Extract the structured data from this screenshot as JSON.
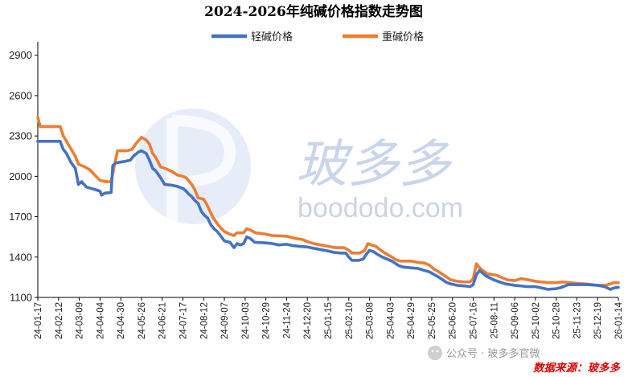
{
  "chart_data": {
    "type": "line",
    "title": "2024-2026年纯碱价格指数走势图",
    "xlabel": "",
    "ylabel": "",
    "ylim": [
      1100,
      3000
    ],
    "yticks": [
      1100,
      1400,
      1700,
      2000,
      2300,
      2600,
      2900
    ],
    "xlim": [
      "2024-01-17",
      "2026-01-14"
    ],
    "xticks": [
      "24-01-17",
      "24-02-12",
      "24-03-09",
      "24-04-04",
      "24-04-30",
      "24-05-26",
      "24-06-21",
      "24-07-17",
      "24-08-12",
      "24-09-07",
      "24-10-03",
      "24-10-29",
      "24-11-24",
      "24-12-20",
      "25-01-15",
      "25-02-10",
      "25-03-08",
      "25-04-03",
      "25-04-29",
      "25-05-25",
      "25-06-20",
      "25-07-16",
      "25-08-11",
      "25-09-06",
      "25-10-02",
      "25-10-28",
      "25-11-23",
      "25-12-19",
      "26-01-14"
    ],
    "grid": false,
    "legend": "top-center",
    "series": [
      {
        "name": "轻碱价格",
        "color": "#4472c4",
        "points": [
          [
            "2024-01-17",
            2260
          ],
          [
            "2024-01-18",
            2260
          ],
          [
            "2024-02-14",
            2260
          ],
          [
            "2024-02-18",
            2200
          ],
          [
            "2024-02-22",
            2170
          ],
          [
            "2024-02-28",
            2100
          ],
          [
            "2024-03-04",
            2060
          ],
          [
            "2024-03-08",
            1940
          ],
          [
            "2024-03-12",
            1960
          ],
          [
            "2024-03-18",
            1920
          ],
          [
            "2024-03-24",
            1910
          ],
          [
            "2024-03-30",
            1900
          ],
          [
            "2024-04-04",
            1890
          ],
          [
            "2024-04-06",
            1860
          ],
          [
            "2024-04-10",
            1875
          ],
          [
            "2024-04-18",
            1880
          ],
          [
            "2024-04-20",
            2080
          ],
          [
            "2024-04-24",
            2100
          ],
          [
            "2024-05-04",
            2110
          ],
          [
            "2024-05-12",
            2120
          ],
          [
            "2024-05-16",
            2150
          ],
          [
            "2024-05-22",
            2180
          ],
          [
            "2024-05-26",
            2190
          ],
          [
            "2024-06-01",
            2170
          ],
          [
            "2024-06-05",
            2120
          ],
          [
            "2024-06-09",
            2060
          ],
          [
            "2024-06-13",
            2040
          ],
          [
            "2024-06-19",
            1990
          ],
          [
            "2024-06-24",
            1940
          ],
          [
            "2024-07-02",
            1935
          ],
          [
            "2024-07-10",
            1925
          ],
          [
            "2024-07-17",
            1910
          ],
          [
            "2024-07-21",
            1890
          ],
          [
            "2024-07-24",
            1870
          ],
          [
            "2024-07-28",
            1850
          ],
          [
            "2024-08-01",
            1820
          ],
          [
            "2024-08-05",
            1800
          ],
          [
            "2024-08-09",
            1740
          ],
          [
            "2024-08-13",
            1710
          ],
          [
            "2024-08-17",
            1690
          ],
          [
            "2024-08-21",
            1640
          ],
          [
            "2024-08-25",
            1610
          ],
          [
            "2024-08-29",
            1590
          ],
          [
            "2024-09-02",
            1560
          ],
          [
            "2024-09-07",
            1520
          ],
          [
            "2024-09-14",
            1510
          ],
          [
            "2024-09-19",
            1470
          ],
          [
            "2024-09-23",
            1500
          ],
          [
            "2024-09-27",
            1490
          ],
          [
            "2024-10-01",
            1500
          ],
          [
            "2024-10-05",
            1550
          ],
          [
            "2024-10-09",
            1540
          ],
          [
            "2024-10-15",
            1510
          ],
          [
            "2024-10-29",
            1505
          ],
          [
            "2024-11-06",
            1500
          ],
          [
            "2024-11-14",
            1490
          ],
          [
            "2024-11-24",
            1495
          ],
          [
            "2024-12-02",
            1485
          ],
          [
            "2024-12-10",
            1480
          ],
          [
            "2024-12-20",
            1475
          ],
          [
            "2024-12-28",
            1465
          ],
          [
            "2025-01-06",
            1455
          ],
          [
            "2025-01-15",
            1445
          ],
          [
            "2025-01-22",
            1435
          ],
          [
            "2025-01-30",
            1430
          ],
          [
            "2025-02-06",
            1430
          ],
          [
            "2025-02-10",
            1400
          ],
          [
            "2025-02-14",
            1375
          ],
          [
            "2025-02-22",
            1375
          ],
          [
            "2025-02-28",
            1385
          ],
          [
            "2025-03-04",
            1420
          ],
          [
            "2025-03-08",
            1450
          ],
          [
            "2025-03-13",
            1440
          ],
          [
            "2025-03-18",
            1420
          ],
          [
            "2025-03-24",
            1400
          ],
          [
            "2025-03-30",
            1385
          ],
          [
            "2025-04-05",
            1370
          ],
          [
            "2025-04-10",
            1350
          ],
          [
            "2025-04-14",
            1335
          ],
          [
            "2025-04-20",
            1325
          ],
          [
            "2025-04-29",
            1320
          ],
          [
            "2025-05-08",
            1315
          ],
          [
            "2025-05-16",
            1300
          ],
          [
            "2025-05-22",
            1290
          ],
          [
            "2025-05-28",
            1270
          ],
          [
            "2025-06-03",
            1250
          ],
          [
            "2025-06-08",
            1230
          ],
          [
            "2025-06-13",
            1210
          ],
          [
            "2025-06-18",
            1200
          ],
          [
            "2025-06-26",
            1190
          ],
          [
            "2025-07-06",
            1185
          ],
          [
            "2025-07-12",
            1180
          ],
          [
            "2025-07-16",
            1195
          ],
          [
            "2025-07-20",
            1270
          ],
          [
            "2025-07-24",
            1300
          ],
          [
            "2025-07-28",
            1280
          ],
          [
            "2025-08-01",
            1260
          ],
          [
            "2025-08-06",
            1245
          ],
          [
            "2025-08-11",
            1230
          ],
          [
            "2025-08-18",
            1215
          ],
          [
            "2025-08-26",
            1200
          ],
          [
            "2025-09-06",
            1190
          ],
          [
            "2025-09-14",
            1185
          ],
          [
            "2025-09-22",
            1180
          ],
          [
            "2025-10-02",
            1180
          ],
          [
            "2025-10-10",
            1170
          ],
          [
            "2025-10-18",
            1160
          ],
          [
            "2025-10-28",
            1165
          ],
          [
            "2025-11-04",
            1175
          ],
          [
            "2025-11-12",
            1195
          ],
          [
            "2025-11-23",
            1195
          ],
          [
            "2025-12-05",
            1195
          ],
          [
            "2025-12-19",
            1190
          ],
          [
            "2025-12-28",
            1180
          ],
          [
            "2026-01-04",
            1160
          ],
          [
            "2026-01-08",
            1170
          ],
          [
            "2026-01-14",
            1175
          ]
        ]
      },
      {
        "name": "重碱价格",
        "color": "#ed7d31",
        "points": [
          [
            "2024-01-17",
            2440
          ],
          [
            "2024-01-20",
            2370
          ],
          [
            "2024-02-14",
            2370
          ],
          [
            "2024-02-18",
            2300
          ],
          [
            "2024-02-22",
            2260
          ],
          [
            "2024-02-28",
            2200
          ],
          [
            "2024-03-04",
            2150
          ],
          [
            "2024-03-08",
            2090
          ],
          [
            "2024-03-16",
            2070
          ],
          [
            "2024-03-22",
            2050
          ],
          [
            "2024-03-30",
            2000
          ],
          [
            "2024-04-04",
            1970
          ],
          [
            "2024-04-12",
            1960
          ],
          [
            "2024-04-18",
            1960
          ],
          [
            "2024-04-22",
            2080
          ],
          [
            "2024-04-26",
            2190
          ],
          [
            "2024-05-08",
            2190
          ],
          [
            "2024-05-14",
            2200
          ],
          [
            "2024-05-20",
            2250
          ],
          [
            "2024-05-26",
            2290
          ],
          [
            "2024-06-01",
            2270
          ],
          [
            "2024-06-05",
            2240
          ],
          [
            "2024-06-09",
            2170
          ],
          [
            "2024-06-13",
            2140
          ],
          [
            "2024-06-19",
            2070
          ],
          [
            "2024-06-24",
            2060
          ],
          [
            "2024-07-02",
            2040
          ],
          [
            "2024-07-10",
            2010
          ],
          [
            "2024-07-17",
            2000
          ],
          [
            "2024-07-21",
            1990
          ],
          [
            "2024-07-28",
            1940
          ],
          [
            "2024-08-01",
            1900
          ],
          [
            "2024-08-05",
            1840
          ],
          [
            "2024-08-12",
            1830
          ],
          [
            "2024-08-16",
            1790
          ],
          [
            "2024-08-20",
            1740
          ],
          [
            "2024-08-24",
            1690
          ],
          [
            "2024-08-29",
            1650
          ],
          [
            "2024-09-02",
            1620
          ],
          [
            "2024-09-07",
            1590
          ],
          [
            "2024-09-14",
            1570
          ],
          [
            "2024-09-19",
            1560
          ],
          [
            "2024-09-23",
            1580
          ],
          [
            "2024-10-01",
            1580
          ],
          [
            "2024-10-05",
            1610
          ],
          [
            "2024-10-10",
            1600
          ],
          [
            "2024-10-16",
            1580
          ],
          [
            "2024-10-29",
            1570
          ],
          [
            "2024-11-06",
            1560
          ],
          [
            "2024-11-24",
            1555
          ],
          [
            "2024-12-04",
            1540
          ],
          [
            "2024-12-14",
            1530
          ],
          [
            "2024-12-20",
            1515
          ],
          [
            "2024-12-28",
            1500
          ],
          [
            "2025-01-06",
            1490
          ],
          [
            "2025-01-15",
            1480
          ],
          [
            "2025-01-24",
            1470
          ],
          [
            "2025-02-04",
            1470
          ],
          [
            "2025-02-10",
            1450
          ],
          [
            "2025-02-14",
            1430
          ],
          [
            "2025-02-24",
            1430
          ],
          [
            "2025-03-02",
            1450
          ],
          [
            "2025-03-06",
            1500
          ],
          [
            "2025-03-10",
            1490
          ],
          [
            "2025-03-16",
            1480
          ],
          [
            "2025-03-22",
            1450
          ],
          [
            "2025-03-30",
            1420
          ],
          [
            "2025-04-05",
            1400
          ],
          [
            "2025-04-10",
            1380
          ],
          [
            "2025-04-16",
            1370
          ],
          [
            "2025-04-29",
            1370
          ],
          [
            "2025-05-08",
            1360
          ],
          [
            "2025-05-16",
            1355
          ],
          [
            "2025-05-22",
            1340
          ],
          [
            "2025-05-28",
            1310
          ],
          [
            "2025-06-03",
            1290
          ],
          [
            "2025-06-08",
            1270
          ],
          [
            "2025-06-13",
            1250
          ],
          [
            "2025-06-18",
            1230
          ],
          [
            "2025-06-26",
            1220
          ],
          [
            "2025-07-06",
            1215
          ],
          [
            "2025-07-12",
            1215
          ],
          [
            "2025-07-16",
            1240
          ],
          [
            "2025-07-20",
            1350
          ],
          [
            "2025-07-24",
            1320
          ],
          [
            "2025-07-28",
            1300
          ],
          [
            "2025-08-03",
            1275
          ],
          [
            "2025-08-09",
            1270
          ],
          [
            "2025-08-14",
            1265
          ],
          [
            "2025-08-20",
            1250
          ],
          [
            "2025-08-28",
            1230
          ],
          [
            "2025-09-06",
            1225
          ],
          [
            "2025-09-14",
            1240
          ],
          [
            "2025-09-24",
            1230
          ],
          [
            "2025-10-02",
            1220
          ],
          [
            "2025-10-10",
            1215
          ],
          [
            "2025-10-18",
            1210
          ],
          [
            "2025-10-28",
            1210
          ],
          [
            "2025-11-06",
            1215
          ],
          [
            "2025-11-14",
            1210
          ],
          [
            "2025-11-23",
            1205
          ],
          [
            "2025-12-05",
            1200
          ],
          [
            "2025-12-19",
            1190
          ],
          [
            "2025-12-28",
            1190
          ],
          [
            "2026-01-04",
            1200
          ],
          [
            "2026-01-08",
            1210
          ],
          [
            "2026-01-14",
            1210
          ]
        ]
      }
    ]
  },
  "watermark": {
    "brand_cn": "玻多多",
    "brand_en": "boododo.com",
    "wechat": "公众号 · 玻多多官微",
    "source": "数据来源：玻多多"
  }
}
